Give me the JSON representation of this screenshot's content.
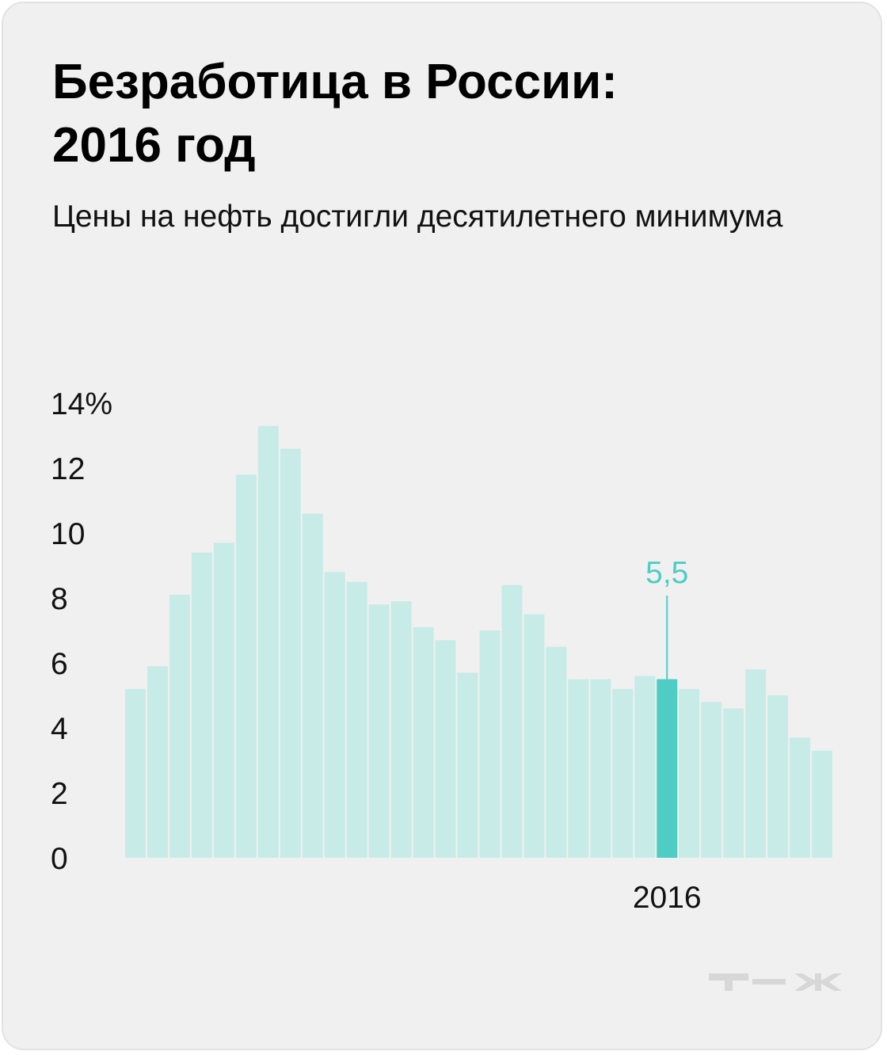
{
  "title": "Безработица в России:\n2016 год",
  "subtitle": "Цены на нефть достигли десятилетнего минимума",
  "logo": "т—ж",
  "colors": {
    "bar": "#c7ebe7",
    "highlight": "#4ecdc4",
    "logo": "#d7d7d7"
  },
  "chart_data": {
    "type": "bar",
    "ylim": [
      0,
      14
    ],
    "y_ticks": [
      "0",
      "2",
      "4",
      "6",
      "8",
      "10",
      "12",
      "14%"
    ],
    "x_labels": [
      {
        "index": 24,
        "label": "2016"
      }
    ],
    "highlight_index": 24,
    "highlight_label": "5,5",
    "values": [
      5.2,
      5.9,
      8.1,
      9.4,
      9.7,
      11.8,
      13.3,
      12.6,
      10.6,
      8.8,
      8.5,
      7.8,
      7.9,
      7.1,
      6.7,
      5.7,
      7.0,
      8.4,
      7.5,
      6.5,
      5.5,
      5.5,
      5.2,
      5.6,
      5.5,
      5.2,
      4.8,
      4.6,
      5.8,
      5.0,
      3.7,
      3.3
    ]
  }
}
